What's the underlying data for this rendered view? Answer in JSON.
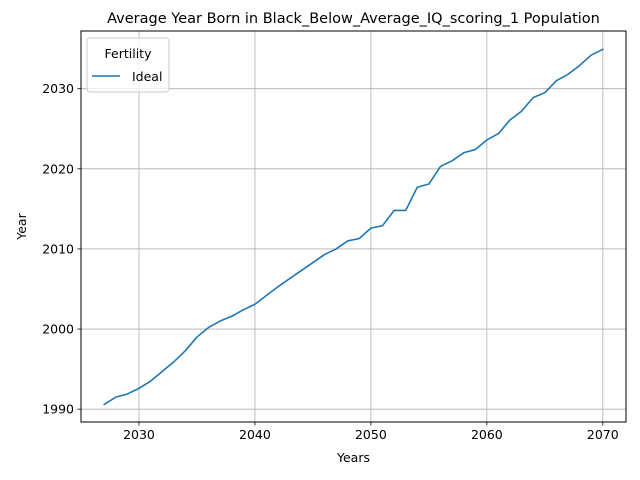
{
  "chart_data": {
    "type": "line",
    "title": "Average Year Born in Black_Below_Average_IQ_scoring_1 Population",
    "xlabel": "Years",
    "ylabel": "Year",
    "xlim": [
      2025,
      2072
    ],
    "ylim": [
      1988.4,
      2037.2
    ],
    "xticks": [
      2030,
      2040,
      2050,
      2060,
      2070
    ],
    "yticks": [
      1990,
      2000,
      2010,
      2020,
      2030
    ],
    "grid": true,
    "legend": {
      "title": "Fertility",
      "placement": "top-left"
    },
    "series": [
      {
        "name": "Ideal",
        "color": "#1f77b4",
        "x": [
          2027,
          2028,
          2029,
          2030,
          2031,
          2032,
          2033,
          2034,
          2035,
          2036,
          2037,
          2038,
          2039,
          2040,
          2041,
          2042,
          2043,
          2044,
          2045,
          2046,
          2047,
          2048,
          2049,
          2050,
          2051,
          2052,
          2053,
          2054,
          2055,
          2056,
          2057,
          2058,
          2059,
          2060,
          2061,
          2062,
          2063,
          2064,
          2065,
          2066,
          2067,
          2068,
          2069,
          2070
        ],
        "y": [
          1990.6,
          1991.5,
          1991.9,
          1992.6,
          1993.5,
          1994.7,
          1995.9,
          1997.3,
          1999.0,
          2000.2,
          2001.0,
          2001.6,
          2002.4,
          2003.1,
          2004.2,
          2005.3,
          2006.3,
          2007.3,
          2008.3,
          2009.3,
          2010.0,
          2011.0,
          2011.3,
          2012.6,
          2012.9,
          2014.8,
          2014.8,
          2017.7,
          2018.1,
          2020.3,
          2021.0,
          2022.0,
          2022.4,
          2023.6,
          2024.4,
          2026.1,
          2027.2,
          2028.9,
          2029.5,
          2031.0,
          2031.8,
          2032.9,
          2034.2,
          2034.9
        ]
      }
    ]
  }
}
